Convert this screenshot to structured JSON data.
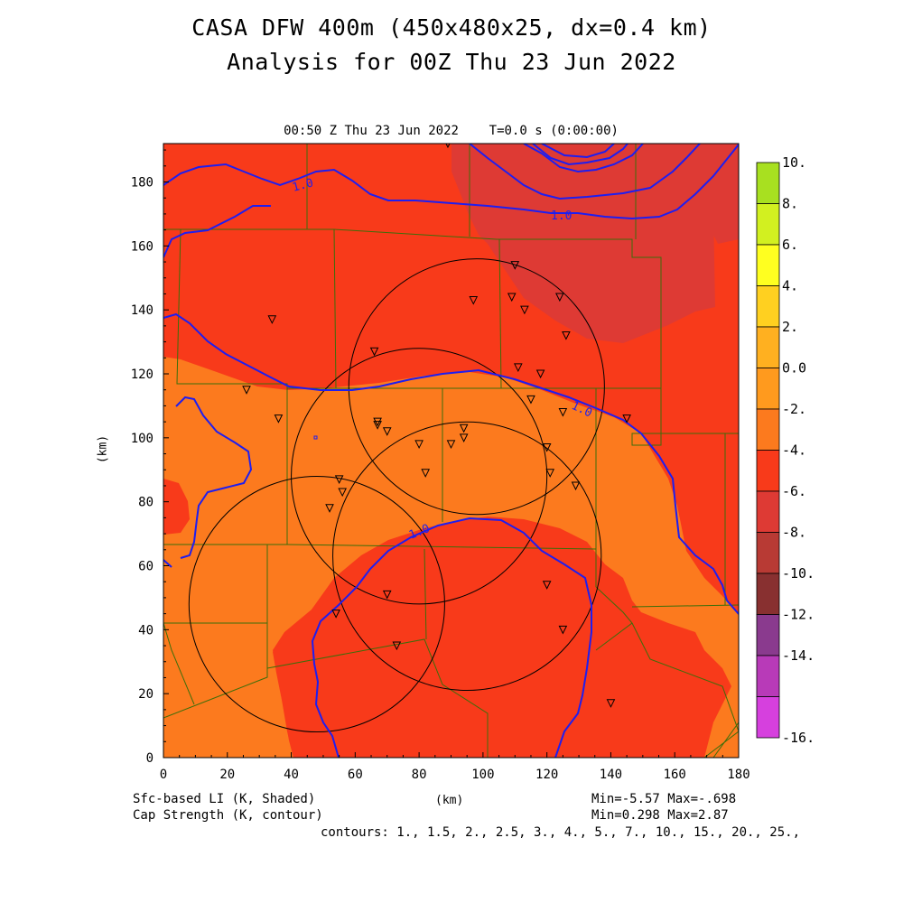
{
  "header": {
    "title_line1": "CASA DFW 400m (450x480x25, dx=0.4 km)",
    "title_line2": "Analysis for 00Z Thu 23 Jun 2022"
  },
  "chart_data": {
    "type": "heatmap",
    "subtitle": "00:50 Z Thu 23 Jun 2022    T=0.0 s (0:00:00)",
    "xlabel": "(km)",
    "ylabel": "(km)",
    "xlim": [
      0,
      180
    ],
    "ylim": [
      0,
      192
    ],
    "x_ticks": [
      0,
      20,
      40,
      60,
      80,
      100,
      120,
      140,
      160,
      180
    ],
    "y_ticks": [
      0,
      20,
      40,
      60,
      80,
      100,
      120,
      140,
      160,
      180
    ],
    "grid": false,
    "fields": {
      "shaded": {
        "label": "Sfc-based LI (K, Shaded)",
        "min": "-5.57",
        "max": "-.698"
      },
      "contour": {
        "label": "Cap Strength (K, contour)",
        "min": "0.298",
        "max": "2.87",
        "contours": "contours: 1., 1.5, 2., 2.5, 3., 4., 5., 7., 10., 15., 20., 25.,",
        "labelled_value": "1.0"
      }
    },
    "colorbar": {
      "labels": [
        "10.",
        "8.",
        "6.",
        "4.",
        "2.",
        "0.0",
        "-2.",
        "-4.",
        "-6.",
        "-8.",
        "-10.",
        "-12.",
        "-14.",
        "-16."
      ],
      "colors": [
        "#a8e020",
        "#d2f020",
        "#ffff20",
        "#ffd020",
        "#ffb020",
        "#ff9a1e",
        "#fc7a1e",
        "#f83a1a",
        "#de3a34",
        "#b83a34",
        "#883030",
        "#8a3a8e",
        "#b83ab8",
        "#d640de"
      ]
    },
    "radar_range_rings_km": [
      {
        "center": [
          80,
          88
        ],
        "radius": 40
      },
      {
        "center": [
          98,
          116
        ],
        "radius": 40
      },
      {
        "center": [
          95,
          63
        ],
        "radius": 42
      },
      {
        "center": [
          48,
          48
        ],
        "radius": 40
      }
    ],
    "stations_km": [
      [
        89,
        192
      ],
      [
        110,
        154
      ],
      [
        97,
        143
      ],
      [
        109,
        144
      ],
      [
        113,
        140
      ],
      [
        124,
        144
      ],
      [
        126,
        132
      ],
      [
        34,
        137
      ],
      [
        66,
        127
      ],
      [
        111,
        122
      ],
      [
        118,
        120
      ],
      [
        26,
        115
      ],
      [
        115,
        112
      ],
      [
        125,
        108
      ],
      [
        145,
        106
      ],
      [
        36,
        106
      ],
      [
        67,
        105
      ],
      [
        67,
        104
      ],
      [
        70,
        102
      ],
      [
        94,
        103
      ],
      [
        94,
        100
      ],
      [
        90,
        98
      ],
      [
        80,
        98
      ],
      [
        120,
        97
      ],
      [
        121,
        89
      ],
      [
        55,
        87
      ],
      [
        56,
        83
      ],
      [
        82,
        89
      ],
      [
        129,
        85
      ],
      [
        52,
        78
      ],
      [
        70,
        51
      ],
      [
        120,
        54
      ],
      [
        54,
        45
      ],
      [
        125,
        40
      ],
      [
        73,
        35
      ],
      [
        140,
        17
      ]
    ]
  }
}
